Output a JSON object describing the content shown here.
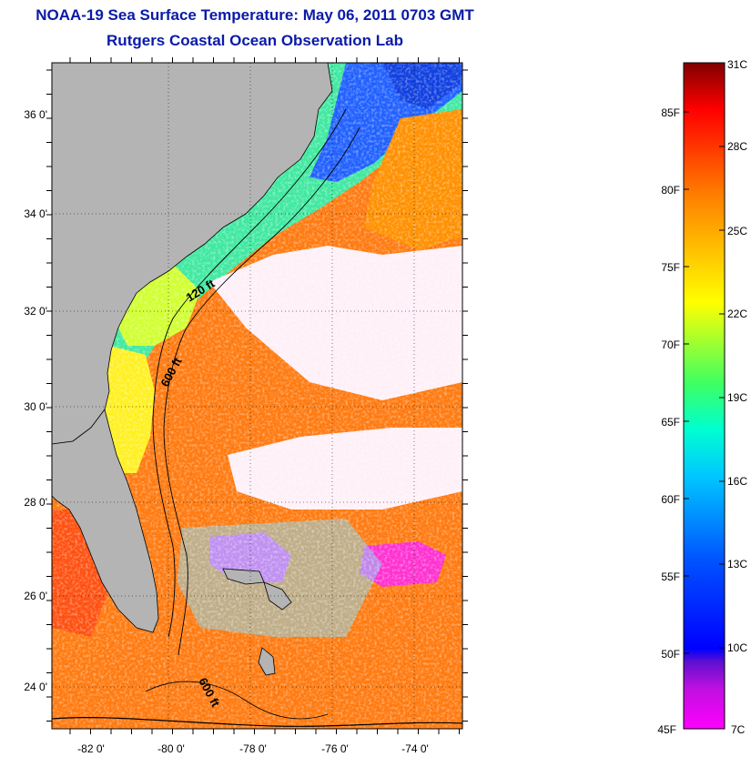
{
  "title": {
    "line1": "NOAA-19 Sea Surface Temperature:  May 06, 2011 0703 GMT",
    "line2": "Rutgers Coastal Ocean Observation Lab"
  },
  "map": {
    "lon_range": [
      -83,
      -73
    ],
    "lat_range": [
      23,
      37
    ],
    "lon_ticks": [
      {
        "value": -82,
        "label": "-82 0'"
      },
      {
        "value": -80,
        "label": "-80 0'"
      },
      {
        "value": -78,
        "label": "-78 0'"
      },
      {
        "value": -76,
        "label": "-76 0'"
      },
      {
        "value": -74,
        "label": "-74 0'"
      }
    ],
    "lat_ticks": [
      {
        "value": 24,
        "label": "24 0'"
      },
      {
        "value": 26,
        "label": "26 0'"
      },
      {
        "value": 28,
        "label": "28 0'"
      },
      {
        "value": 30,
        "label": "30 0'"
      },
      {
        "value": 32,
        "label": "32 0'"
      },
      {
        "value": 34,
        "label": "34 0'"
      },
      {
        "value": 36,
        "label": "36 0'"
      }
    ],
    "contour_labels": [
      "120 ft",
      "600 ft",
      "600 ft"
    ],
    "land_color": "#b4b4b4"
  },
  "colorbar": {
    "fahrenheit_labels": [
      "85F",
      "80F",
      "75F",
      "70F",
      "65F",
      "60F",
      "55F",
      "50F",
      "45F"
    ],
    "celsius_labels": [
      "31C",
      "28C",
      "25C",
      "22C",
      "19C",
      "16C",
      "13C",
      "10C",
      "7C"
    ]
  }
}
